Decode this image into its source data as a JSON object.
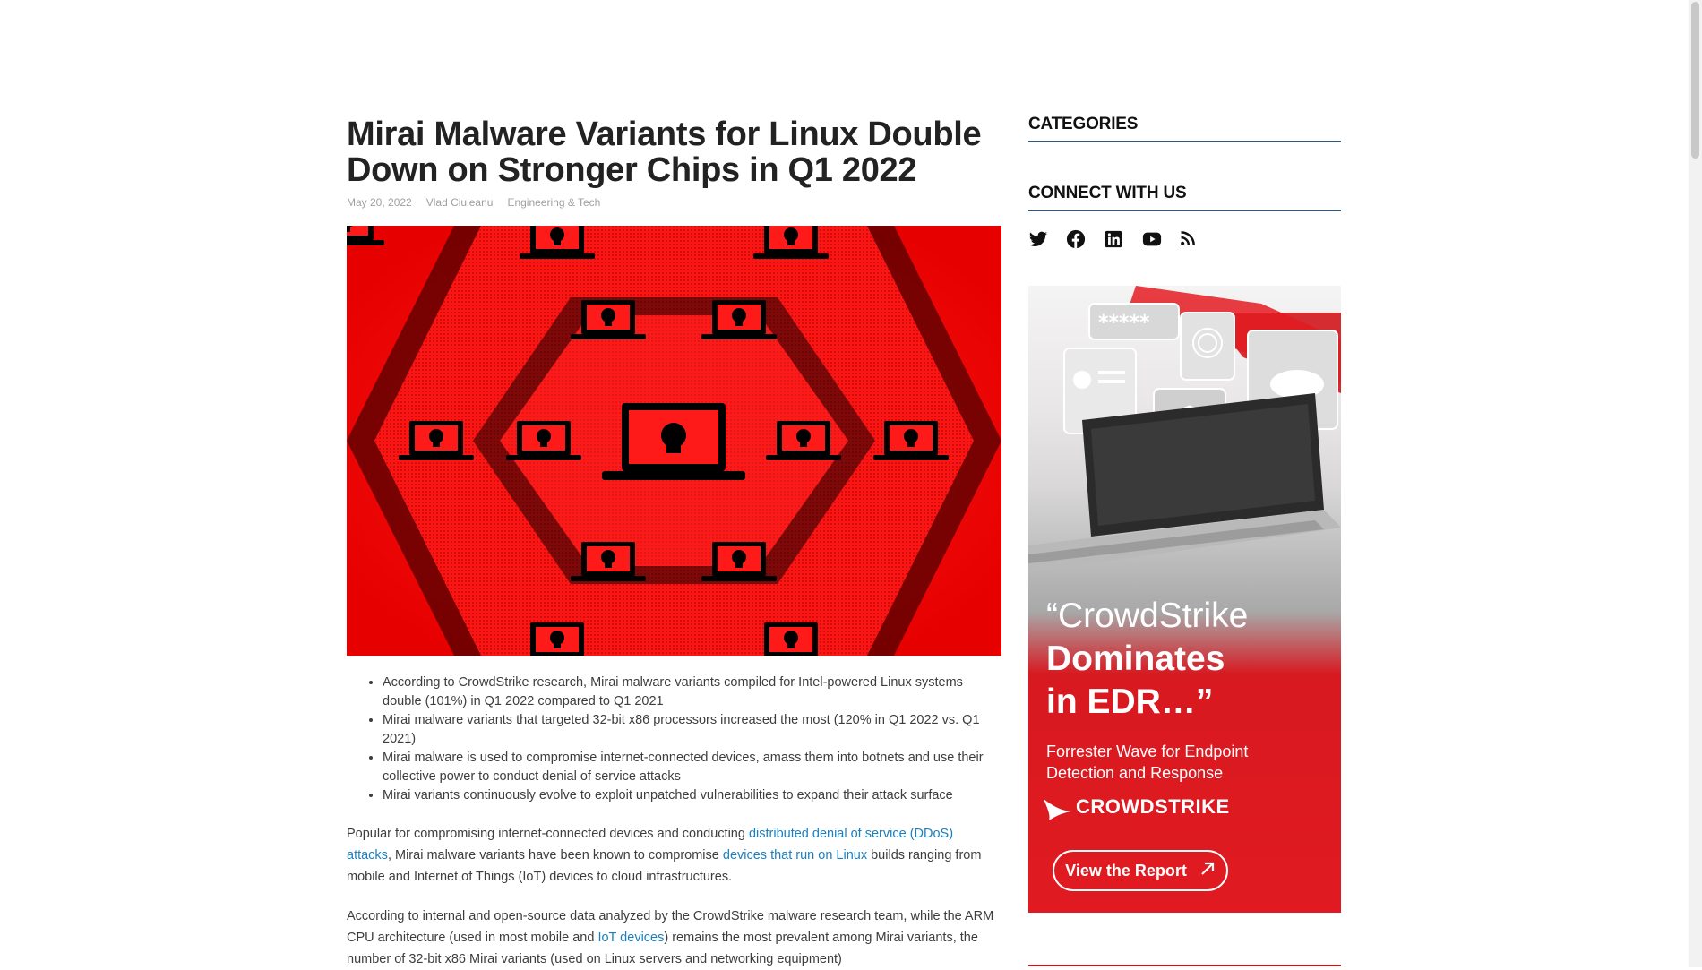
{
  "article": {
    "title": "Mirai Malware Variants for Linux Double Down on Stronger Chips in Q1 2022",
    "date": "May 20, 2022",
    "author": "Vlad Ciuleanu",
    "category": "Engineering & Tech",
    "bullets": [
      "According to CrowdStrike research, Mirai malware variants compiled for Intel-powered Linux systems double (101%) in Q1 2022 compared to Q1 2021",
      "Mirai malware variants that targeted 32-bit x86 processors increased the most (120% in Q1 2022 vs. Q1 2021)",
      "Mirai malware is used to compromise internet-connected devices, amass them into botnets and use their collective power to conduct denial of service attacks",
      "Mirai variants continuously evolve to exploit unpatched vulnerabilities to expand their attack surface"
    ],
    "para1": {
      "t1": "Popular for compromising internet-connected devices and conducting ",
      "link1": "distributed denial of service (DDoS) attacks",
      "t2": ", Mirai malware variants have been known to compromise ",
      "link2": "devices that run on Linux",
      "t3": " builds ranging from mobile and Internet of Things (IoT) devices to cloud infrastructures."
    },
    "para2": {
      "t1": "According to internal and open-source data analyzed by the CrowdStrike malware research team, while the ARM CPU architecture (used in most mobile and ",
      "link1": "IoT devices",
      "t2": ") remains the most prevalent among Mirai variants, the number of 32-bit x86 Mirai variants (used on Linux servers and networking equipment)"
    }
  },
  "sidebar": {
    "categories_title": "CATEGORIES",
    "connect_title": "CONNECT WITH US",
    "social_icons": [
      "twitter-icon",
      "facebook-icon",
      "linkedin-icon",
      "youtube-icon",
      "rss-icon"
    ]
  },
  "ad": {
    "quote_line1": "“CrowdStrike",
    "quote_line2": "Dominates",
    "quote_line3": "in EDR…”",
    "subtitle": "Forrester Wave for Endpoint Detection and Response",
    "logo_text": "CROWDSTRIKE",
    "button_label": "View the Report",
    "password_mask": "*****"
  },
  "colors": {
    "link": "#1a7fbf",
    "widget_border": "#3a5570",
    "brand_red": "#e11a21"
  }
}
